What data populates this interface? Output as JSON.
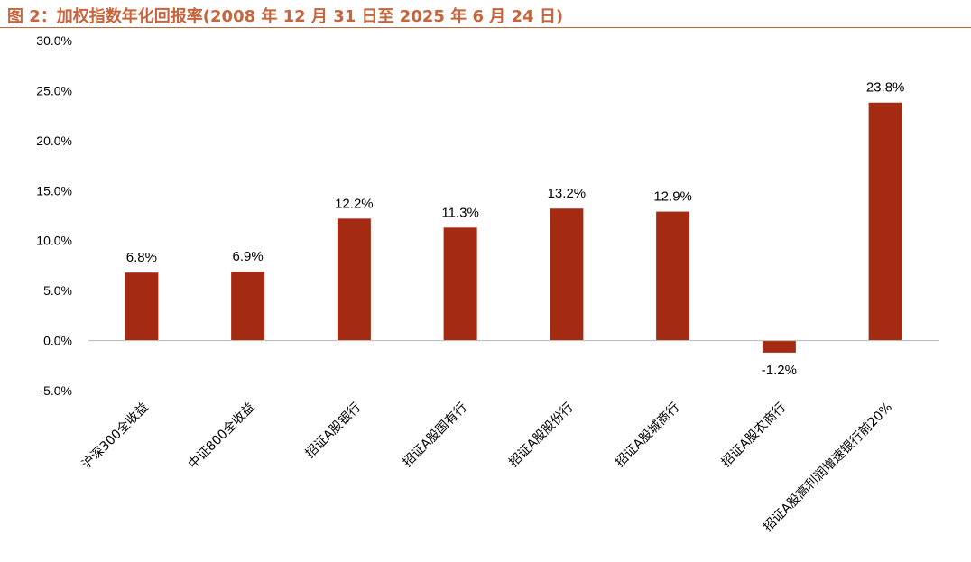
{
  "title": "图 2：加权指数年化回报率(2008 年 12 月 31 日至 2025 年 6 月 24 日)",
  "colors": {
    "title": "#c8643c",
    "bar": "#a52a12",
    "axis": "#bfbfbf"
  },
  "chart_data": {
    "type": "bar",
    "categories": [
      "沪深300全收益",
      "中证800全收益",
      "招证A股银行",
      "招证A股国有行",
      "招证A股股份行",
      "招证A股城商行",
      "招证A股农商行",
      "招证A股高利润增速银行前20%"
    ],
    "values": [
      6.8,
      6.9,
      12.2,
      11.3,
      13.2,
      12.9,
      -1.2,
      23.8
    ],
    "data_labels": [
      "6.8%",
      "6.9%",
      "12.2%",
      "11.3%",
      "13.2%",
      "12.9%",
      "-1.2%",
      "23.8%"
    ],
    "y_ticks": [
      30,
      25,
      20,
      15,
      10,
      5,
      0,
      -5
    ],
    "y_tick_labels": [
      "30.0%",
      "25.0%",
      "20.0%",
      "15.0%",
      "10.0%",
      "5.0%",
      "0.0%",
      "-5.0%"
    ],
    "ylim": [
      -5,
      30
    ],
    "grid": false,
    "legend": "none"
  }
}
